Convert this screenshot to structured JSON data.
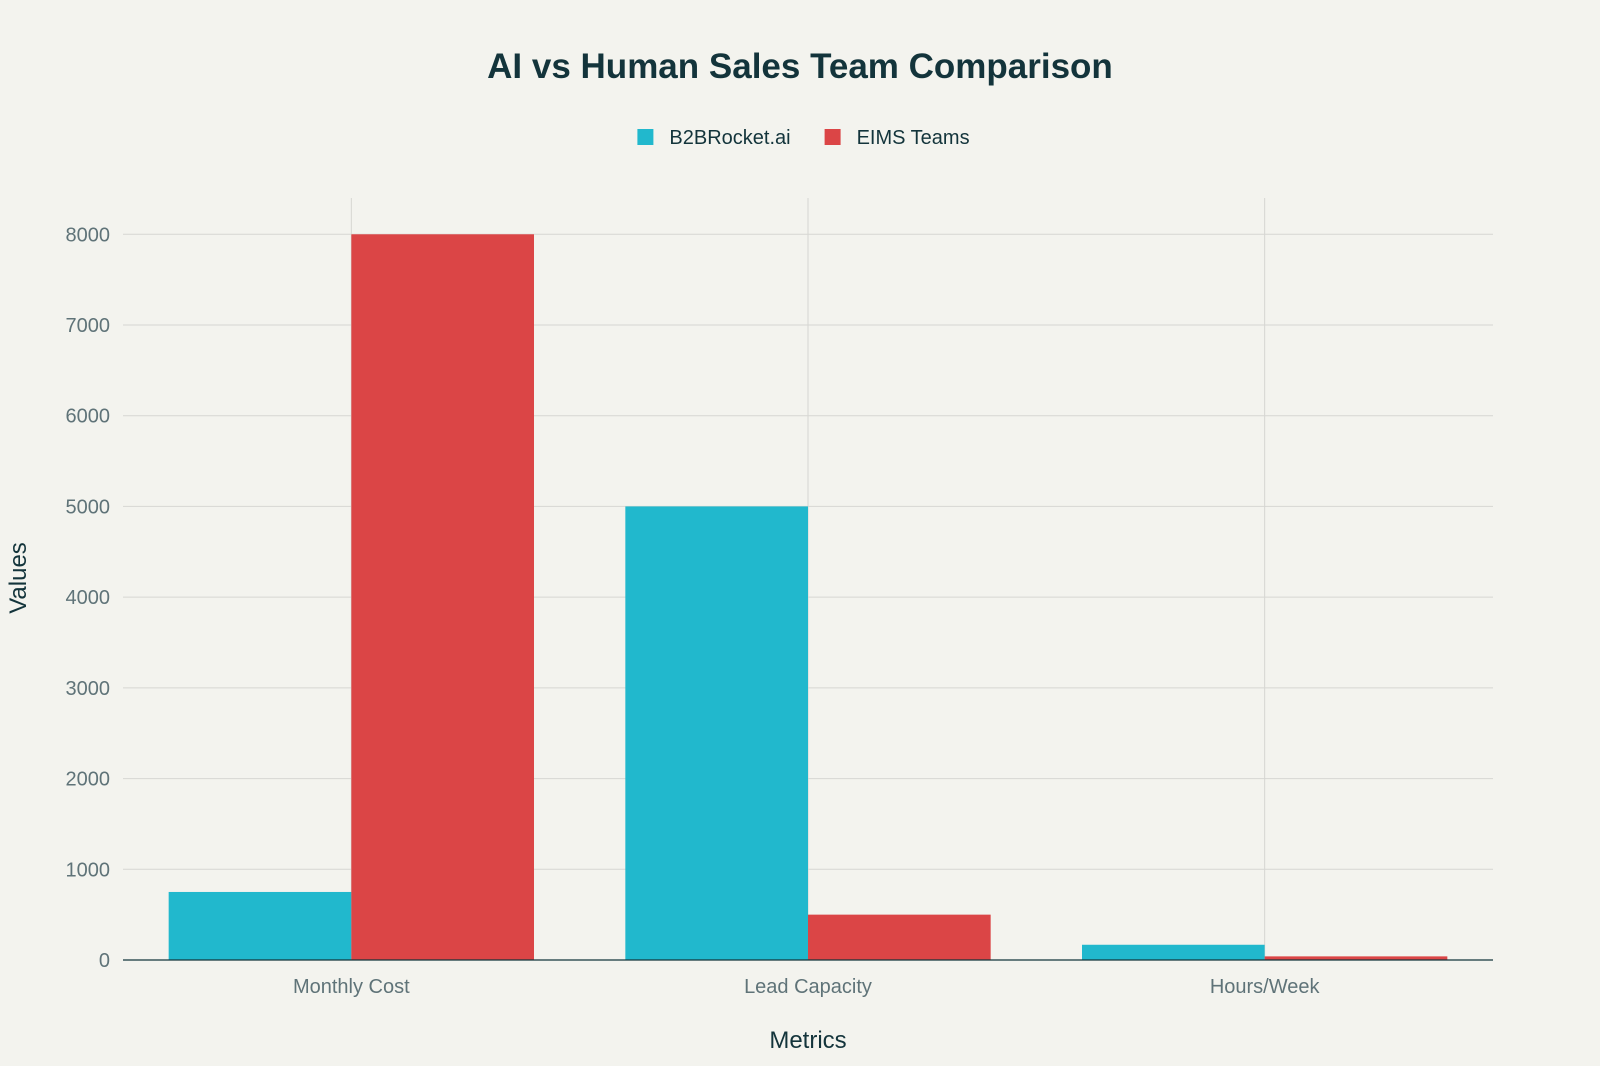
{
  "chart_data": {
    "type": "bar",
    "title": "AI vs Human Sales Team Comparison",
    "xlabel": "Metrics",
    "ylabel": "Values",
    "categories": [
      "Monthly Cost",
      "Lead Capacity",
      "Hours/Week"
    ],
    "series": [
      {
        "name": "B2BRocket.ai",
        "color": "#21b8cd",
        "values": [
          750,
          5000,
          168
        ]
      },
      {
        "name": "EIMS Teams",
        "color": "#db4546",
        "values": [
          8000,
          500,
          40
        ]
      }
    ],
    "ylim": [
      0,
      8400
    ],
    "yticks": [
      0,
      1000,
      2000,
      3000,
      4000,
      5000,
      6000,
      7000,
      8000
    ],
    "ytick_labels": [
      "0",
      "1000",
      "2000",
      "3000",
      "4000",
      "5000",
      "6000",
      "7000",
      "8000"
    ],
    "grid": true,
    "legend_position": "top-center"
  }
}
